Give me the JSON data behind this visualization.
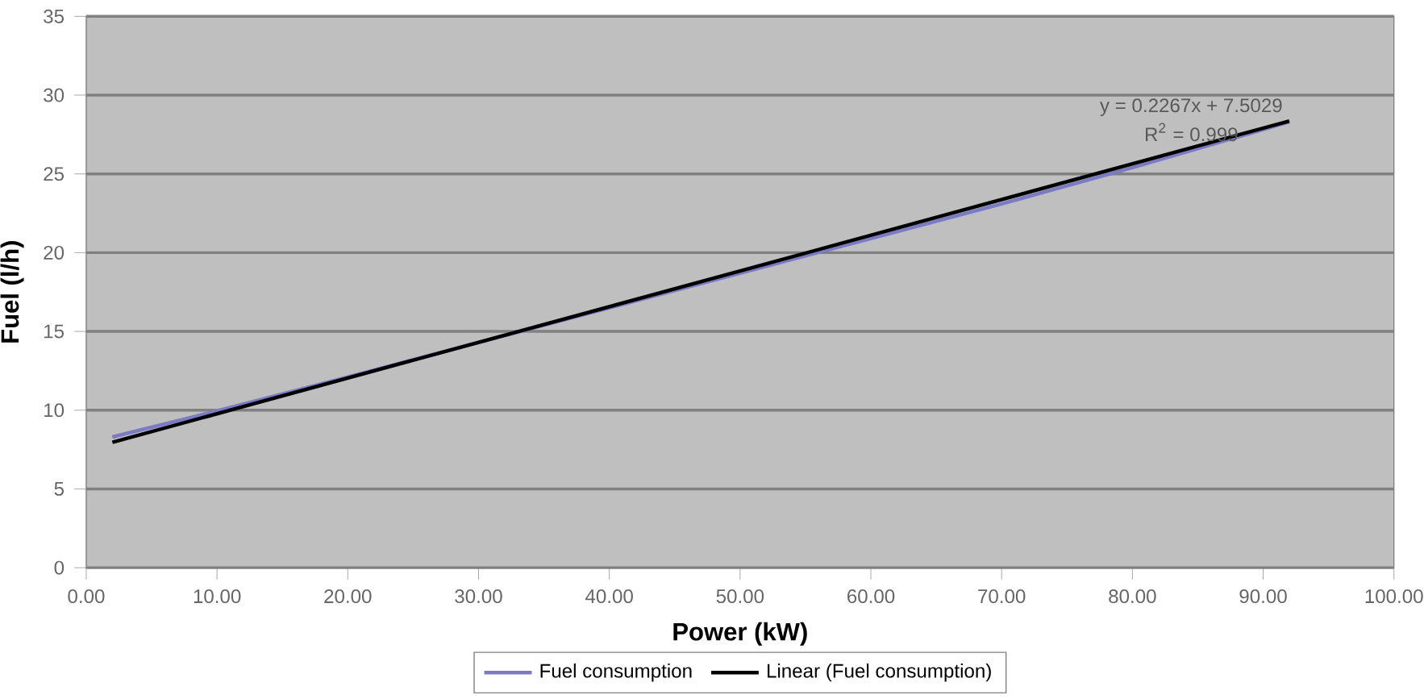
{
  "chart_data": {
    "type": "line",
    "xlabel": "Power (kW)",
    "ylabel": "Fuel (l/h)",
    "xlim": [
      0,
      100
    ],
    "ylim": [
      0,
      35
    ],
    "xticks": [
      {
        "value": 0,
        "label": "0.00"
      },
      {
        "value": 10,
        "label": "10.00"
      },
      {
        "value": 20,
        "label": "20.00"
      },
      {
        "value": 30,
        "label": "30.00"
      },
      {
        "value": 40,
        "label": "40.00"
      },
      {
        "value": 50,
        "label": "50.00"
      },
      {
        "value": 60,
        "label": "60.00"
      },
      {
        "value": 70,
        "label": "70.00"
      },
      {
        "value": 80,
        "label": "80.00"
      },
      {
        "value": 90,
        "label": "90.00"
      },
      {
        "value": 100,
        "label": "100.00"
      }
    ],
    "yticks": [
      0,
      5,
      10,
      15,
      20,
      25,
      30,
      35
    ],
    "grid": "y",
    "legend": "bottom",
    "annotations": [
      "y = 0.2267x + 7.5029",
      "R$^{2}$ = 0.999"
    ],
    "series": [
      {
        "name": "Fuel consumption",
        "color": "#7b7bc4",
        "x": [
          2,
          10,
          20,
          30,
          40,
          50,
          60,
          70,
          80,
          92
        ],
        "values": [
          8.3,
          9.95,
          12.1,
          14.3,
          16.5,
          18.7,
          20.9,
          23.1,
          25.4,
          28.3
        ]
      },
      {
        "name": "Linear (Fuel consumption)",
        "color": "#000000",
        "x": [
          2,
          92
        ],
        "values": [
          7.96,
          28.36
        ]
      }
    ]
  }
}
